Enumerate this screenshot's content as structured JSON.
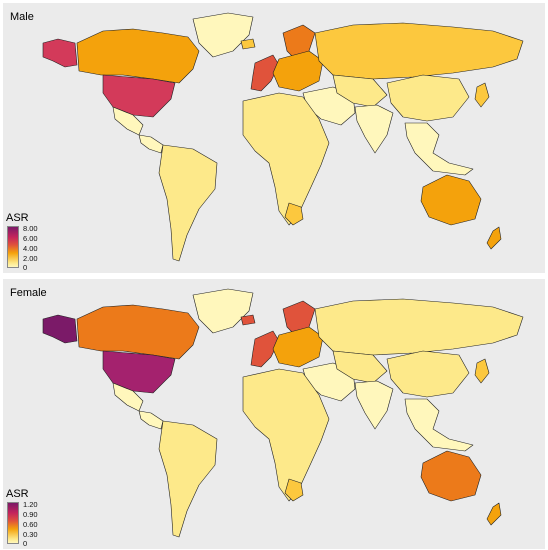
{
  "colors": {
    "background": "#ebebeb",
    "pale": "#fff7bc",
    "light": "#fde98a",
    "mid": "#fcc83e",
    "orange": "#f4a20c",
    "deep_orange": "#ec7a1a",
    "red": "#e0533b",
    "crimson": "#d33a5a",
    "magenta": "#a4226e",
    "purple": "#7b1a68"
  },
  "panels": [
    {
      "title": "Male",
      "legend": {
        "title": "ASR",
        "ticks": [
          "8.00",
          "6.00",
          "4.00",
          "2.00",
          "0"
        ]
      },
      "region_colors": {
        "alaska": "crimson",
        "canada": "orange",
        "greenland": "pale",
        "usa": "crimson",
        "mexico": "pale",
        "central_america": "pale",
        "south_america": "light",
        "europe_west": "red",
        "scandinavia": "deep_orange",
        "europe_east": "orange",
        "russia": "mid",
        "middle_east": "pale",
        "africa": "light",
        "south_africa": "mid",
        "central_asia": "light",
        "south_asia": "pale",
        "china": "light",
        "se_asia": "pale",
        "japan": "mid",
        "australia": "orange",
        "new_zealand": "orange",
        "iceland": "mid"
      }
    },
    {
      "title": "Female",
      "legend": {
        "title": "ASR",
        "ticks": [
          "1.20",
          "0.90",
          "0.60",
          "0.30",
          "0"
        ]
      },
      "region_colors": {
        "alaska": "purple",
        "canada": "deep_orange",
        "greenland": "pale",
        "usa": "magenta",
        "mexico": "pale",
        "central_america": "pale",
        "south_america": "light",
        "europe_west": "red",
        "scandinavia": "red",
        "europe_east": "orange",
        "russia": "light",
        "middle_east": "pale",
        "africa": "light",
        "south_africa": "mid",
        "central_asia": "light",
        "south_asia": "pale",
        "china": "light",
        "se_asia": "pale",
        "japan": "mid",
        "australia": "deep_orange",
        "new_zealand": "orange",
        "iceland": "red"
      }
    }
  ]
}
